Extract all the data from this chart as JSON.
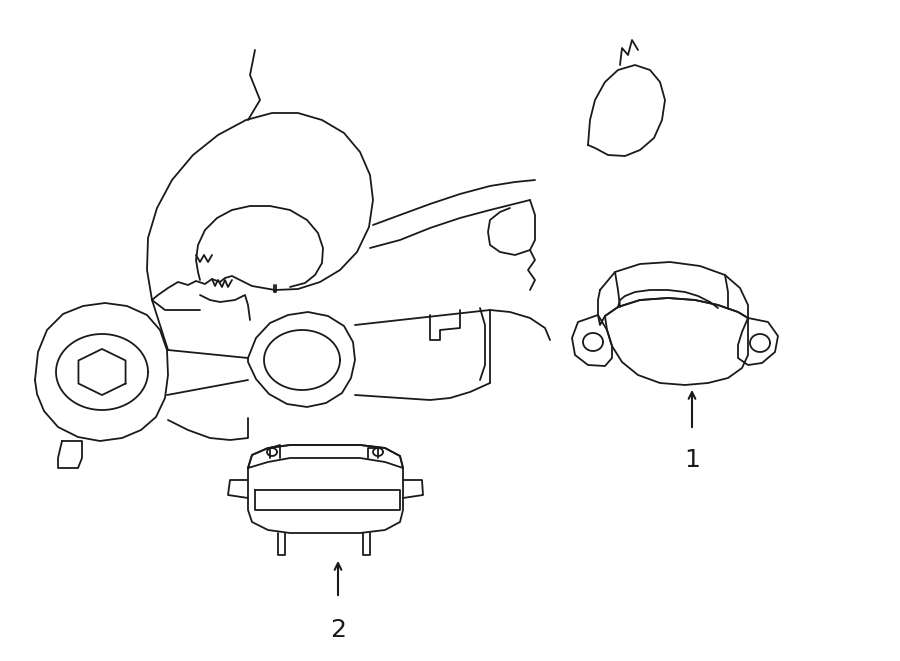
{
  "bg_color": "#ffffff",
  "line_color": "#1a1a1a",
  "lw": 1.3,
  "fig_w": 9.0,
  "fig_h": 6.61,
  "dpi": 100
}
